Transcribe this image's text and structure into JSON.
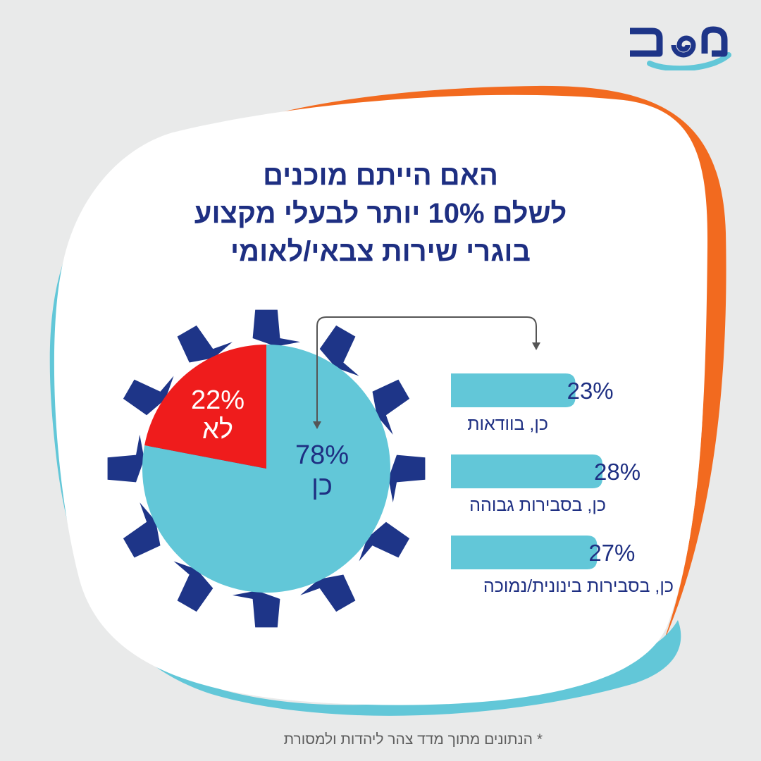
{
  "colors": {
    "background": "#e9eaea",
    "card": "#ffffff",
    "accent_orange": "#f26a1f",
    "accent_cyan": "#62c7d8",
    "navy": "#1e2f82",
    "gear": "#1e3588",
    "pie_yes": "#62c7d8",
    "pie_no": "#ef1c1c",
    "bar": "#62c7d8",
    "connector": "#555555",
    "footnote": "#5d5d5d"
  },
  "title": {
    "lines": [
      "האם הייתם מוכנים",
      "לשלם 10% יותר לבעלי מקצוע",
      "בוגרי שירות צבאי/לאומי"
    ]
  },
  "footnote": "* הנתונים מתוך מדד צהר ליהדות ולמסורת",
  "chart_data": [
    {
      "type": "pie",
      "slices": [
        {
          "label": "כן",
          "value": 78,
          "value_label": "78%",
          "color": "#62c7d8"
        },
        {
          "label": "לא",
          "value": 22,
          "value_label": "22%",
          "color": "#ef1c1c"
        }
      ]
    },
    {
      "type": "bar",
      "orientation": "horizontal",
      "breakdown_of": "כן",
      "categories": [
        "כן, בוודאות",
        "כן, בסבירות גבוהה",
        "כן, בסבירות בינונית/נמוכה"
      ],
      "values": [
        23,
        28,
        27
      ],
      "value_labels": [
        "23%",
        "28%",
        "27%"
      ]
    }
  ]
}
